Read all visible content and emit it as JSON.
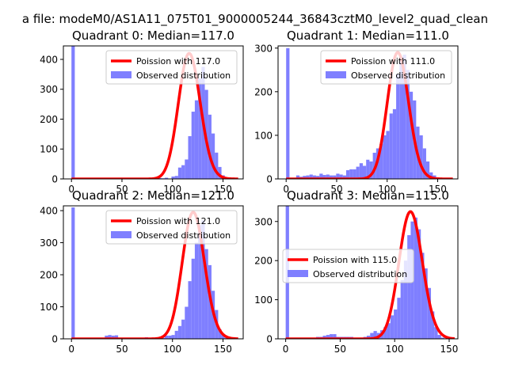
{
  "figure_title": "a file: modeM0/AS1A11_075T01_9000005244_36843cztM0_level2_quad_clean",
  "colors": {
    "bar": "#7f7fff",
    "curve": "#ff0000",
    "axis": "#000000"
  },
  "chart_data": [
    {
      "type": "bar",
      "title": "Quadrant 0: Median=117.0",
      "median": 117.0,
      "xlim": [
        -8,
        170
      ],
      "ylim": [
        0,
        445
      ],
      "xticks": [
        0,
        50,
        100,
        150
      ],
      "yticks": [
        0,
        100,
        200,
        300,
        400
      ],
      "legend": {
        "loc": "upper-right",
        "entries": [
          "Poission with 117.0",
          "Observed distribution"
        ]
      },
      "hist": {
        "bin_start": 0,
        "bin_width": 3.3,
        "counts": [
          445,
          0,
          0,
          0,
          0,
          0,
          0,
          0,
          0,
          0,
          0,
          0,
          0,
          0,
          4,
          3,
          2,
          1,
          1,
          1,
          1,
          0,
          3,
          1,
          1,
          0,
          3,
          2,
          4,
          1,
          8,
          10,
          38,
          46,
          65,
          143,
          225,
          263,
          336,
          375,
          298,
          215,
          152,
          88,
          40,
          12,
          5,
          2,
          1,
          0
        ]
      },
      "curve": {
        "label": "Poission with 117.0",
        "mean": 117.0,
        "scale": 420,
        "x_range": [
          0,
          165
        ]
      }
    },
    {
      "type": "bar",
      "title": "Quadrant 1: Median=111.0",
      "median": 111.0,
      "xlim": [
        -8,
        170
      ],
      "ylim": [
        0,
        305
      ],
      "xticks": [
        0,
        50,
        100,
        150
      ],
      "yticks": [
        0,
        100,
        200,
        300
      ],
      "legend": {
        "loc": "upper-right",
        "entries": [
          "Poission with 111.0",
          "Observed distribution"
        ]
      },
      "hist": {
        "bin_start": 0,
        "bin_width": 3.3,
        "counts": [
          300,
          0,
          0,
          8,
          5,
          7,
          8,
          10,
          8,
          7,
          12,
          9,
          10,
          8,
          8,
          12,
          10,
          8,
          20,
          22,
          22,
          28,
          36,
          30,
          44,
          40,
          60,
          70,
          80,
          100,
          110,
          150,
          160,
          240,
          280,
          285,
          250,
          200,
          180,
          120,
          100,
          70,
          40,
          15,
          8,
          3,
          1,
          0,
          0,
          0
        ]
      },
      "curve": {
        "label": "Poission with 111.0",
        "mean": 111.0,
        "scale": 290,
        "x_range": [
          0,
          165
        ]
      }
    },
    {
      "type": "bar",
      "title": "Quadrant 2: Median=121.0",
      "median": 121.0,
      "xlim": [
        -8,
        170
      ],
      "ylim": [
        0,
        415
      ],
      "xticks": [
        0,
        50,
        100,
        150
      ],
      "yticks": [
        0,
        100,
        200,
        300,
        400
      ],
      "legend": {
        "loc": "upper-right",
        "entries": [
          "Poission with 121.0",
          "Observed distribution"
        ]
      },
      "hist": {
        "bin_start": 0,
        "bin_width": 3.3,
        "counts": [
          410,
          0,
          0,
          0,
          0,
          0,
          0,
          0,
          0,
          0,
          10,
          12,
          10,
          11,
          0,
          0,
          0,
          0,
          0,
          0,
          3,
          0,
          5,
          0,
          3,
          0,
          5,
          3,
          10,
          10,
          12,
          25,
          40,
          60,
          100,
          180,
          250,
          300,
          355,
          370,
          280,
          230,
          150,
          90,
          30,
          12,
          3,
          1,
          0,
          0
        ]
      },
      "curve": {
        "label": "Poission with 121.0",
        "mean": 121.0,
        "scale": 395,
        "x_range": [
          0,
          165
        ]
      }
    },
    {
      "type": "bar",
      "title": "Quadrant 3: Median=115.0",
      "median": 115.0,
      "xlim": [
        -7,
        158
      ],
      "ylim": [
        0,
        340
      ],
      "xticks": [
        0,
        50,
        100,
        150
      ],
      "yticks": [
        0,
        100,
        200,
        300
      ],
      "legend": {
        "loc": "center-left",
        "entries": [
          "Poission with 115.0",
          "Observed distribution"
        ]
      },
      "hist": {
        "bin_start": 0,
        "bin_width": 3.1,
        "counts": [
          340,
          0,
          0,
          0,
          0,
          0,
          0,
          0,
          0,
          5,
          5,
          8,
          10,
          12,
          12,
          5,
          5,
          5,
          5,
          5,
          2,
          3,
          3,
          5,
          8,
          15,
          20,
          15,
          22,
          30,
          40,
          60,
          75,
          105,
          150,
          200,
          265,
          300,
          310,
          280,
          220,
          180,
          130,
          70,
          30,
          10,
          3,
          1,
          0,
          0
        ]
      },
      "curve": {
        "label": "Poission with 115.0",
        "mean": 115.0,
        "scale": 325,
        "x_range": [
          0,
          155
        ]
      }
    }
  ]
}
